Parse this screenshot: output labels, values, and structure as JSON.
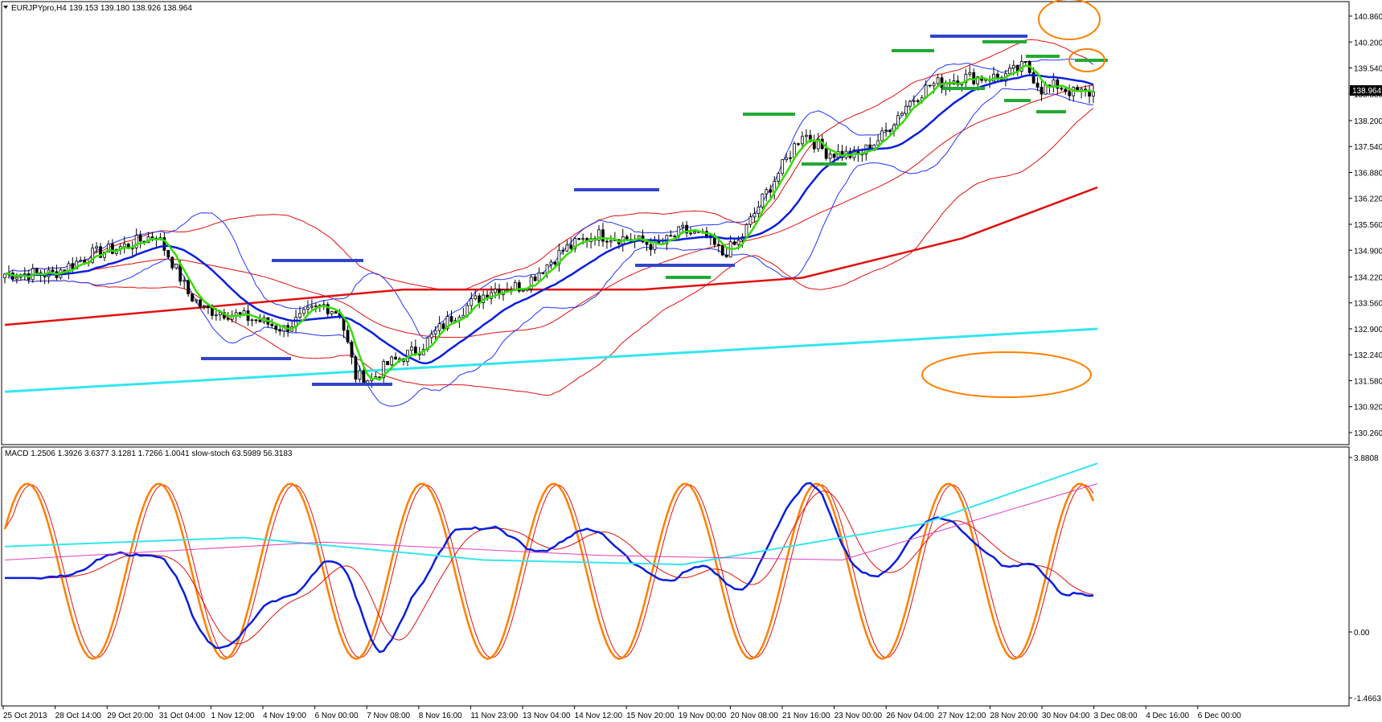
{
  "header": {
    "symbol": "EURJPYpro,H4",
    "ohlc": "139.153 139.180 138.926 138.964",
    "indicator": "MACD 1.2506 1.3926 3.6377 3.1281 1.7266 1.0041  slow-stoch 63.5989 56.3183"
  },
  "colors": {
    "bg": "#ffffff",
    "bull": "#ffffff",
    "bear": "#000000",
    "green_ma": "#33dd00",
    "blue_ma": "#0a1edc",
    "thin_blue": "#2233ff",
    "red_ma": "#e01010",
    "cyan_ma": "#33e6f0",
    "magenta": "#e040c0",
    "orange": "#ff7f00",
    "level_blue": "#3344cc",
    "level_green": "#22aa33"
  },
  "chart_data": [
    {
      "type": "candlestick",
      "title": "EURJPYpro,H4",
      "price_axis_ticks": [
        "140.860",
        "140.200",
        "139.540",
        "138.880",
        "138.200",
        "137.540",
        "136.880",
        "136.220",
        "135.560",
        "134.900",
        "134.220",
        "133.560",
        "132.900",
        "132.240",
        "131.580",
        "130.920",
        "130.260"
      ],
      "current_price": "138.964",
      "x_tick_labels": [
        "25 Oct 2013",
        "28 Oct 14:00",
        "29 Oct 20:00",
        "31 Oct 04:00",
        "1 Nov 12:00",
        "4 Nov 19:00",
        "6 Nov 00:00",
        "7 Nov 08:00",
        "8 Nov 16:00",
        "11 Nov 23:00",
        "13 Nov 04:00",
        "14 Nov 12:00",
        "15 Nov 20:00",
        "19 Nov 00:00",
        "20 Nov 08:00",
        "21 Nov 16:00",
        "23 Nov 00:00",
        "26 Nov 04:00",
        "27 Nov 12:00",
        "28 Nov 20:00",
        "30 Nov 04:00",
        "3 Dec 08:00",
        "4 Dec 16:00",
        "6 Dec 00:00"
      ],
      "ylim": [
        130.1,
        141.2
      ],
      "close_path": [
        [
          0,
          134.3
        ],
        [
          12,
          134.3
        ],
        [
          22,
          134.8
        ],
        [
          30,
          135.0
        ],
        [
          38,
          135.3
        ],
        [
          42,
          134.6
        ],
        [
          46,
          133.8
        ],
        [
          50,
          133.4
        ],
        [
          56,
          133.3
        ],
        [
          64,
          133.1
        ],
        [
          70,
          132.9
        ],
        [
          76,
          133.3
        ],
        [
          80,
          133.5
        ],
        [
          84,
          133.3
        ],
        [
          88,
          131.7
        ],
        [
          92,
          131.6
        ],
        [
          96,
          132.0
        ],
        [
          104,
          132.4
        ],
        [
          112,
          133.2
        ],
        [
          122,
          133.9
        ],
        [
          130,
          134.0
        ],
        [
          140,
          134.9
        ],
        [
          148,
          135.3
        ],
        [
          156,
          135.2
        ],
        [
          164,
          135.0
        ],
        [
          170,
          135.4
        ],
        [
          176,
          135.2
        ],
        [
          180,
          134.8
        ],
        [
          184,
          135.1
        ],
        [
          190,
          136.2
        ],
        [
          196,
          137.2
        ],
        [
          200,
          137.9
        ],
        [
          206,
          137.4
        ],
        [
          214,
          137.3
        ],
        [
          220,
          137.8
        ],
        [
          226,
          138.6
        ],
        [
          232,
          139.1
        ],
        [
          240,
          139.3
        ],
        [
          250,
          139.3
        ],
        [
          256,
          139.6
        ],
        [
          260,
          139.0
        ],
        [
          264,
          139.1
        ],
        [
          268,
          138.9
        ],
        [
          274,
          138.9
        ]
      ],
      "candle_count": 274,
      "ma_green_period_note": "fast MA",
      "levels_blue": [
        [
          0.48,
          133.4,
          30
        ],
        [
          0.62,
          131.0,
          22
        ],
        [
          0.49,
          133.5,
          -1
        ],
        [
          0.75,
          135.3,
          1
        ],
        [
          0.92,
          134.1,
          1
        ],
        [
          1.11,
          140.4,
          1
        ]
      ],
      "bollinger_fast": "thin blue bands",
      "envelope_slow": "thin red bands",
      "ma_red_thick": [
        [
          0,
          133.0
        ],
        [
          100,
          133.9
        ],
        [
          160,
          133.9
        ],
        [
          200,
          134.2
        ],
        [
          240,
          135.2
        ],
        [
          274,
          136.5
        ]
      ],
      "ma_cyan_thick": [
        [
          0,
          131.3
        ],
        [
          274,
          132.9
        ]
      ]
    },
    {
      "type": "line",
      "title": "MACD / slow-stoch",
      "y_axis_ticks": [
        "3.8808",
        "0.00",
        "-1.4663"
      ],
      "ylim": [
        -1.4663,
        3.8808
      ]
    }
  ]
}
